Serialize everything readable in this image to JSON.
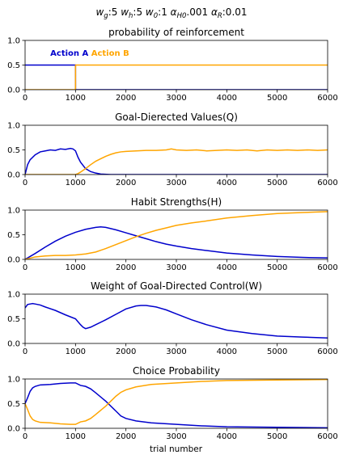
{
  "figure": {
    "suptitle": "w_g:5 w_h:5 w_0:1 α_H0.001 α_R:0.01",
    "xlabel": "trial number"
  },
  "colors": {
    "action_a": "#0000cc",
    "action_b": "#ffa500"
  },
  "chart_data": [
    {
      "type": "line",
      "title": "probability of reinforcement",
      "xlim": [
        0,
        6000
      ],
      "ylim": [
        0,
        1
      ],
      "xticks": [
        "0",
        "1000",
        "2000",
        "3000",
        "4000",
        "5000",
        "6000"
      ],
      "yticks": [
        "0.0",
        "0.5",
        "1.0"
      ],
      "legend": {
        "placement": "top-left",
        "entries": [
          "Action A",
          "Action B"
        ]
      },
      "series": [
        {
          "name": "Action A",
          "color": "#0000cc",
          "x": [
            0,
            990,
            1000,
            1001,
            6000
          ],
          "y": [
            0.5,
            0.5,
            0.5,
            0.0,
            0.0
          ]
        },
        {
          "name": "Action B",
          "color": "#ffa500",
          "x": [
            0,
            990,
            1000,
            1001,
            6000
          ],
          "y": [
            0.0,
            0.0,
            0.0,
            0.5,
            0.5
          ]
        }
      ]
    },
    {
      "type": "line",
      "title": "Goal-Dierected Values(Q)",
      "xlim": [
        0,
        6000
      ],
      "ylim": [
        0,
        1
      ],
      "xticks": [
        "0",
        "1000",
        "2000",
        "3000",
        "4000",
        "5000",
        "6000"
      ],
      "yticks": [
        "0.0",
        "0.5",
        "1.0"
      ],
      "series": [
        {
          "color": "#0000cc",
          "x": [
            0,
            50,
            100,
            200,
            300,
            400,
            500,
            600,
            700,
            800,
            900,
            950,
            1000,
            1050,
            1100,
            1200,
            1300,
            1400,
            1500,
            1700,
            2000,
            3000,
            4000,
            5000,
            6000
          ],
          "y": [
            0.0,
            0.2,
            0.3,
            0.4,
            0.46,
            0.48,
            0.5,
            0.49,
            0.52,
            0.51,
            0.53,
            0.52,
            0.48,
            0.35,
            0.25,
            0.12,
            0.06,
            0.03,
            0.01,
            0.0,
            0.0,
            0.0,
            0.0,
            0.0,
            0.0
          ]
        },
        {
          "color": "#ffa500",
          "x": [
            0,
            1000,
            1050,
            1100,
            1200,
            1300,
            1400,
            1500,
            1600,
            1700,
            1800,
            1900,
            2000,
            2200,
            2400,
            2600,
            2800,
            2900,
            3000,
            3200,
            3400,
            3600,
            3800,
            4000,
            4200,
            4400,
            4600,
            4800,
            5000,
            5200,
            5400,
            5600,
            5800,
            6000
          ],
          "y": [
            0.0,
            0.0,
            0.02,
            0.05,
            0.12,
            0.2,
            0.27,
            0.32,
            0.37,
            0.41,
            0.44,
            0.46,
            0.47,
            0.48,
            0.49,
            0.49,
            0.5,
            0.52,
            0.5,
            0.49,
            0.5,
            0.48,
            0.49,
            0.5,
            0.49,
            0.5,
            0.48,
            0.5,
            0.49,
            0.5,
            0.49,
            0.5,
            0.49,
            0.5
          ]
        }
      ]
    },
    {
      "type": "line",
      "title": "Habit Strengths(H)",
      "xlim": [
        0,
        6000
      ],
      "ylim": [
        0,
        1
      ],
      "xticks": [
        "0",
        "1000",
        "2000",
        "3000",
        "4000",
        "5000",
        "6000"
      ],
      "yticks": [
        "0.0",
        "0.5",
        "1.0"
      ],
      "series": [
        {
          "color": "#0000cc",
          "x": [
            0,
            200,
            400,
            600,
            800,
            1000,
            1200,
            1400,
            1500,
            1600,
            1800,
            2000,
            2200,
            2400,
            2600,
            2800,
            3000,
            3300,
            3600,
            4000,
            4500,
            5000,
            5500,
            6000
          ],
          "y": [
            0.0,
            0.12,
            0.25,
            0.37,
            0.47,
            0.55,
            0.61,
            0.65,
            0.66,
            0.65,
            0.6,
            0.54,
            0.48,
            0.42,
            0.36,
            0.31,
            0.27,
            0.22,
            0.18,
            0.13,
            0.09,
            0.06,
            0.04,
            0.03
          ]
        },
        {
          "color": "#ffa500",
          "x": [
            0,
            200,
            400,
            600,
            800,
            1000,
            1200,
            1400,
            1600,
            1800,
            2000,
            2200,
            2400,
            2600,
            2800,
            3000,
            3300,
            3600,
            4000,
            4500,
            5000,
            5500,
            6000
          ],
          "y": [
            0.0,
            0.05,
            0.07,
            0.08,
            0.08,
            0.09,
            0.11,
            0.15,
            0.22,
            0.3,
            0.38,
            0.46,
            0.53,
            0.59,
            0.64,
            0.69,
            0.74,
            0.78,
            0.84,
            0.89,
            0.93,
            0.95,
            0.97
          ]
        }
      ]
    },
    {
      "type": "line",
      "title": "Weight of Goal-Directed Control(W)",
      "xlim": [
        0,
        6000
      ],
      "ylim": [
        0,
        1
      ],
      "xticks": [
        "0",
        "1000",
        "2000",
        "3000",
        "4000",
        "5000",
        "6000"
      ],
      "yticks": [
        "0.0",
        "0.5",
        "1.0"
      ],
      "series": [
        {
          "color": "#0000cc",
          "x": [
            0,
            50,
            100,
            150,
            200,
            300,
            400,
            600,
            800,
            1000,
            1100,
            1150,
            1200,
            1300,
            1400,
            1600,
            1800,
            2000,
            2200,
            2300,
            2400,
            2600,
            2800,
            3000,
            3300,
            3600,
            4000,
            4500,
            5000,
            5500,
            6000
          ],
          "y": [
            0.72,
            0.79,
            0.8,
            0.81,
            0.8,
            0.78,
            0.74,
            0.67,
            0.58,
            0.5,
            0.38,
            0.33,
            0.3,
            0.33,
            0.38,
            0.48,
            0.59,
            0.7,
            0.76,
            0.77,
            0.77,
            0.74,
            0.68,
            0.6,
            0.48,
            0.38,
            0.27,
            0.2,
            0.15,
            0.13,
            0.11
          ]
        }
      ]
    },
    {
      "type": "line",
      "title": "Choice Probability",
      "xlim": [
        0,
        6000
      ],
      "ylim": [
        0,
        1
      ],
      "xticks": [
        "0",
        "1000",
        "2000",
        "3000",
        "4000",
        "5000",
        "6000"
      ],
      "yticks": [
        "0.0",
        "0.5",
        "1.0"
      ],
      "series": [
        {
          "color": "#0000cc",
          "x": [
            0,
            50,
            100,
            150,
            200,
            300,
            500,
            700,
            900,
            1000,
            1100,
            1200,
            1300,
            1400,
            1600,
            1800,
            1900,
            2000,
            2200,
            2500,
            3000,
            3500,
            4000,
            5000,
            6000
          ],
          "y": [
            0.5,
            0.62,
            0.75,
            0.82,
            0.85,
            0.88,
            0.89,
            0.91,
            0.92,
            0.92,
            0.87,
            0.85,
            0.8,
            0.72,
            0.55,
            0.35,
            0.25,
            0.2,
            0.15,
            0.11,
            0.08,
            0.05,
            0.03,
            0.02,
            0.01
          ]
        },
        {
          "color": "#ffa500",
          "x": [
            0,
            50,
            100,
            150,
            200,
            300,
            500,
            700,
            900,
            1000,
            1100,
            1200,
            1300,
            1400,
            1600,
            1800,
            1900,
            2000,
            2200,
            2500,
            3000,
            3500,
            4000,
            5000,
            6000
          ],
          "y": [
            0.5,
            0.38,
            0.25,
            0.18,
            0.15,
            0.12,
            0.11,
            0.09,
            0.08,
            0.08,
            0.13,
            0.15,
            0.2,
            0.28,
            0.45,
            0.65,
            0.73,
            0.78,
            0.84,
            0.89,
            0.92,
            0.95,
            0.97,
            0.98,
            0.99
          ]
        }
      ]
    }
  ]
}
